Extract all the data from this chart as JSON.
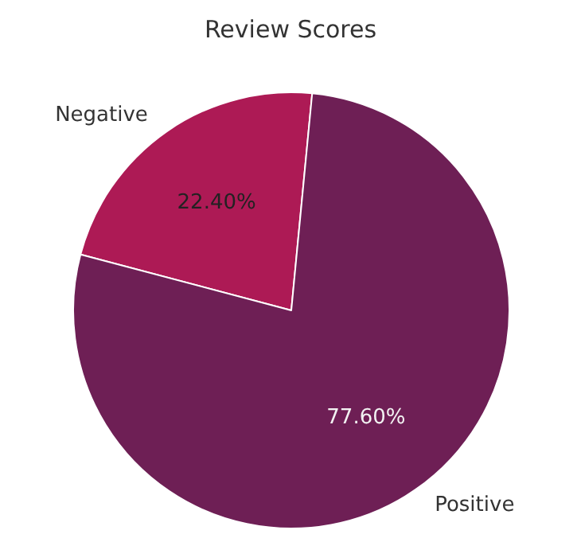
{
  "chart_data": {
    "type": "pie",
    "title": "Review Scores",
    "categories": [
      "Negative",
      "Positive"
    ],
    "values": [
      22.4,
      77.6
    ],
    "colors": [
      "#ad1a55",
      "#6e1f55"
    ],
    "value_labels": [
      "22.40%",
      "77.60%"
    ]
  }
}
